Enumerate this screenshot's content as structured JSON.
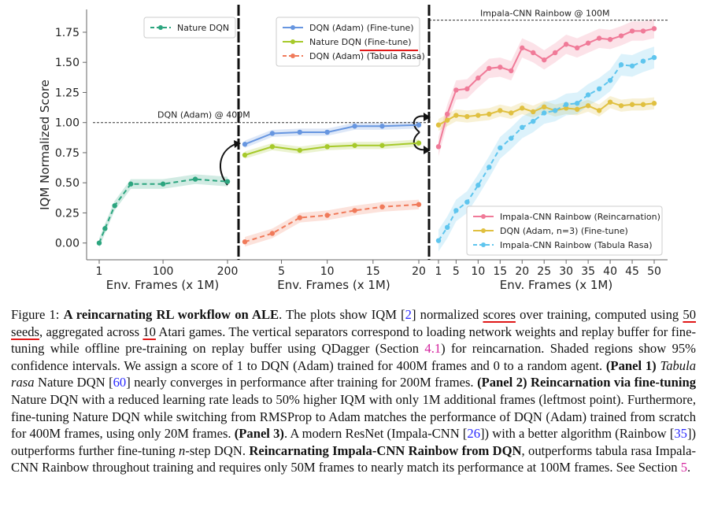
{
  "figure": {
    "ylabel": "IQM Normalized Score",
    "colors": {
      "nature_dqn": "#2ca57f",
      "adam_ft": "#6796e0",
      "nature_ft": "#a6c92a",
      "adam_tr": "#f07a5a",
      "rainbow_reinc": "#f07a98",
      "adam_n3": "#e0c040",
      "rainbow_tr": "#5ec5ee",
      "separator": "#111111",
      "reference": "#333333"
    },
    "chart_data": [
      {
        "type": "line",
        "panel": "Panel 1",
        "xlabel": "Env. Frames (x 1M)",
        "ylabel": "IQM Normalized Score",
        "ylim": [
          -0.1,
          1.9
        ],
        "yticks": [
          "0.00",
          "0.25",
          "0.50",
          "0.75",
          "1.00",
          "1.25",
          "1.50",
          "1.75"
        ],
        "xticks": [
          "1",
          "100",
          "200"
        ],
        "legend_position": "top-right",
        "series": [
          {
            "name": "Nature DQN",
            "x": [
              1,
              10,
              25,
              50,
              100,
              150,
              200
            ],
            "y": [
              0.0,
              0.12,
              0.31,
              0.49,
              0.49,
              0.53,
              0.51
            ],
            "band": 0.04
          }
        ],
        "reference_line": {
          "label": "DQN (Adam) @ 400M",
          "y": 1.0
        }
      },
      {
        "type": "line",
        "panel": "Panel 2",
        "xlabel": "Env. Frames (x 1M)",
        "xticks": [
          "5",
          "10",
          "15",
          "20"
        ],
        "legend_position": "top",
        "series": [
          {
            "name": "DQN (Adam) (Fine-tune)",
            "x": [
              1,
              4,
              7,
              10,
              13,
              16,
              20
            ],
            "y": [
              0.82,
              0.91,
              0.92,
              0.92,
              0.97,
              0.97,
              0.98
            ],
            "band": 0.03
          },
          {
            "name": "Nature DQN (Fine-tune)",
            "x": [
              1,
              4,
              7,
              10,
              13,
              16,
              20
            ],
            "y": [
              0.73,
              0.8,
              0.77,
              0.8,
              0.81,
              0.81,
              0.83
            ],
            "band": 0.03
          },
          {
            "name": "DQN (Adam) (Tabula Rasa)",
            "x": [
              1,
              4,
              7,
              10,
              13,
              16,
              20
            ],
            "y": [
              0.01,
              0.08,
              0.21,
              0.23,
              0.27,
              0.3,
              0.32
            ],
            "band": 0.04
          }
        ]
      },
      {
        "type": "line",
        "panel": "Panel 3",
        "xlabel": "Env. Frames (x 1M)",
        "xticks": [
          "1",
          "5",
          "10",
          "15",
          "20",
          "25",
          "30",
          "35",
          "40",
          "45",
          "50"
        ],
        "legend_position": "bottom-right",
        "series": [
          {
            "name": "Impala-CNN Rainbow (Reincarnation)",
            "x": [
              1,
              3,
              5,
              7.5,
              10,
              12.5,
              15,
              17.5,
              20,
              22.5,
              25,
              27.5,
              30,
              32.5,
              35,
              37.5,
              40,
              42.5,
              45,
              47.5,
              50
            ],
            "y": [
              0.8,
              1.07,
              1.27,
              1.28,
              1.37,
              1.45,
              1.46,
              1.43,
              1.62,
              1.58,
              1.52,
              1.58,
              1.65,
              1.62,
              1.66,
              1.7,
              1.69,
              1.72,
              1.76,
              1.76,
              1.78
            ],
            "band": 0.08
          },
          {
            "name": "DQN (Adam, n=3) (Fine-tune)",
            "x": [
              1,
              3,
              5,
              7.5,
              10,
              12.5,
              15,
              17.5,
              20,
              22.5,
              25,
              27.5,
              30,
              32.5,
              35,
              37.5,
              40,
              42.5,
              45,
              47.5,
              50
            ],
            "y": [
              0.98,
              1.02,
              1.06,
              1.05,
              1.06,
              1.07,
              1.1,
              1.08,
              1.12,
              1.09,
              1.13,
              1.1,
              1.12,
              1.11,
              1.14,
              1.1,
              1.17,
              1.14,
              1.15,
              1.15,
              1.16
            ],
            "band": 0.05
          },
          {
            "name": "Impala-CNN Rainbow (Tabula Rasa)",
            "x": [
              1,
              3,
              5,
              7.5,
              10,
              12.5,
              15,
              17.5,
              20,
              22.5,
              25,
              27.5,
              30,
              32.5,
              35,
              37.5,
              40,
              42.5,
              45,
              47.5,
              50
            ],
            "y": [
              0.02,
              0.13,
              0.27,
              0.34,
              0.48,
              0.63,
              0.79,
              0.87,
              0.96,
              1.01,
              1.08,
              1.1,
              1.15,
              1.16,
              1.23,
              1.28,
              1.35,
              1.48,
              1.47,
              1.51,
              1.54
            ],
            "band": 0.09
          }
        ],
        "reference_line": {
          "label": "Impala-CNN Rainbow @ 100M",
          "y": 1.85
        }
      }
    ]
  },
  "caption": {
    "fig_label": "Figure 1:",
    "title": "A reincarnating RL workflow on ALE",
    "t1": ". The plots show IQM [",
    "ref_iqm": "2",
    "t2": "] normalized ",
    "w_scores": "scores",
    "t3": " over training, computed using ",
    "w_seeds": "50 seeds",
    "t4": ", aggregated across ",
    "w_ten": "10",
    "t5": " Atari games. The vertical separators correspond to loading network weights and replay buffer for fine-tuning while offline pre-training on replay buffer using QDagger (Section ",
    "sec_41": "4.1",
    "t6": ") for reincarnation. Shaded regions show 95% confidence intervals. We assign a score of 1 to DQN (Adam) trained for 400M frames and 0 to a random agent. ",
    "panel1": "(Panel 1)",
    "tabula": "Tabula rasa",
    "t7": " Nature DQN [",
    "ref_60": "60",
    "t8": "] nearly converges in performance after training for 200M frames. ",
    "panel2": "(Panel 2) Reincarnation via fine-tuning",
    "t9": " Nature DQN with a reduced learning rate leads to 50% higher IQM with only 1M additional frames (leftmost point). Furthermore, fine-tuning Nature DQN while switching from RMSProp to Adam matches the performance of DQN (Adam) trained from scratch for 400M frames, using only 20M frames. ",
    "panel3": "(Panel 3)",
    "t10": ". A modern ResNet (Impala-CNN [",
    "ref_26": "26",
    "t11": "]) with a better algorithm (Rainbow [",
    "ref_35": "35",
    "t12": "]) outperforms further fine-tuning ",
    "nstep": "n",
    "t13": "-step DQN. ",
    "reinc": "Reincarnating Impala-CNN Rainbow from DQN",
    "t14": ", outperforms tabula rasa Impala-CNN Rainbow throughout training and requires only 50M frames to nearly match its performance at 100M frames. See Section ",
    "sec_5": "5",
    "t15": "."
  }
}
